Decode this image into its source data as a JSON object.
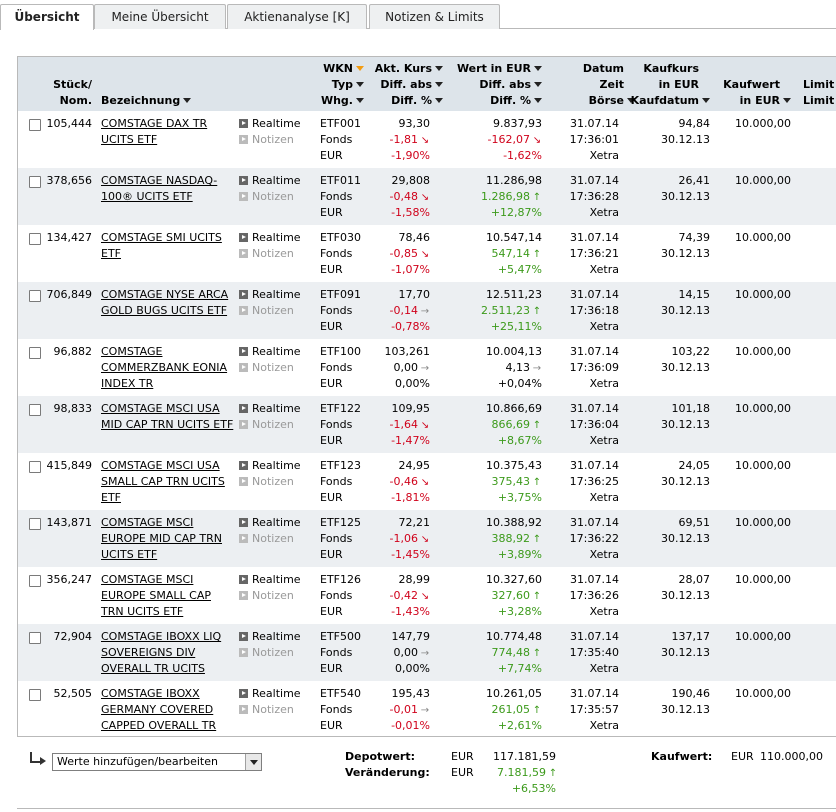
{
  "tabs": [
    {
      "label": "Übersicht"
    },
    {
      "label": "Meine Übersicht"
    },
    {
      "label": "Aktienanalyse [K]"
    },
    {
      "label": "Notizen & Limits"
    }
  ],
  "headers": {
    "stueck": [
      "Stück/",
      "Nom."
    ],
    "bezeichnung": "Bezeichnung",
    "wkn": [
      "WKN",
      "Typ",
      "Whg."
    ],
    "kurs": [
      "Akt. Kurs",
      "Diff. abs",
      "Diff. %"
    ],
    "wert": [
      "Wert in EUR",
      "Diff. abs",
      "Diff. %"
    ],
    "datum": [
      "Datum",
      "Zeit",
      "Börse"
    ],
    "kaufkurs": [
      "Kaufkurs",
      "in EUR",
      "Kaufdatum"
    ],
    "kaufwert": [
      "Kaufwert",
      "in EUR"
    ],
    "limit": [
      "Limit",
      "Limit"
    ]
  },
  "link_labels": {
    "realtime": "Realtime",
    "notizen": "Notizen"
  },
  "rows": [
    {
      "qty": "105,444",
      "name": "COMSTAGE DAX TR UCITS ETF",
      "wkn": "ETF001",
      "typ": "Fonds",
      "whg": "EUR",
      "kurs": "93,30",
      "kurs_diff": "-1,81",
      "kurs_pct": "-1,90%",
      "kurs_dir": "down",
      "wert": "9.837,93",
      "wert_diff": "-162,07",
      "wert_pct": "-1,62%",
      "wert_dir": "down",
      "datum": "31.07.14",
      "zeit": "17:36:01",
      "boerse": "Xetra",
      "kaufkurs": "94,84",
      "kaufdatum": "30.12.13",
      "kaufwert": "10.000,00"
    },
    {
      "qty": "378,656",
      "name": "COMSTAGE NASDAQ-100® UCITS ETF",
      "wkn": "ETF011",
      "typ": "Fonds",
      "whg": "EUR",
      "kurs": "29,808",
      "kurs_diff": "-0,48",
      "kurs_pct": "-1,58%",
      "kurs_dir": "down",
      "wert": "11.286,98",
      "wert_diff": "1.286,98",
      "wert_pct": "+12,87%",
      "wert_dir": "up",
      "datum": "31.07.14",
      "zeit": "17:36:28",
      "boerse": "Xetra",
      "kaufkurs": "26,41",
      "kaufdatum": "30.12.13",
      "kaufwert": "10.000,00"
    },
    {
      "qty": "134,427",
      "name": "COMSTAGE SMI UCITS ETF",
      "wkn": "ETF030",
      "typ": "Fonds",
      "whg": "EUR",
      "kurs": "78,46",
      "kurs_diff": "-0,85",
      "kurs_pct": "-1,07%",
      "kurs_dir": "down",
      "wert": "10.547,14",
      "wert_diff": "547,14",
      "wert_pct": "+5,47%",
      "wert_dir": "up",
      "datum": "31.07.14",
      "zeit": "17:36:21",
      "boerse": "Xetra",
      "kaufkurs": "74,39",
      "kaufdatum": "30.12.13",
      "kaufwert": "10.000,00"
    },
    {
      "qty": "706,849",
      "name": "COMSTAGE NYSE ARCA GOLD BUGS UCITS ETF",
      "wkn": "ETF091",
      "typ": "Fonds",
      "whg": "EUR",
      "kurs": "17,70",
      "kurs_diff": "-0,14",
      "kurs_pct": "-0,78%",
      "kurs_dir": "flat",
      "wert": "12.511,23",
      "wert_diff": "2.511,23",
      "wert_pct": "+25,11%",
      "wert_dir": "up",
      "datum": "31.07.14",
      "zeit": "17:36:18",
      "boerse": "Xetra",
      "kaufkurs": "14,15",
      "kaufdatum": "30.12.13",
      "kaufwert": "10.000,00"
    },
    {
      "qty": "96,882",
      "name": "COMSTAGE COMMERZBANK EONIA INDEX TR",
      "wkn": "ETF100",
      "typ": "Fonds",
      "whg": "EUR",
      "kurs": "103,261",
      "kurs_diff": "0,00",
      "kurs_pct": "0,00%",
      "kurs_dir": "flat",
      "wert": "10.004,13",
      "wert_diff": "4,13",
      "wert_pct": "+0,04%",
      "wert_dir": "flat",
      "datum": "31.07.14",
      "zeit": "17:36:09",
      "boerse": "Xetra",
      "kaufkurs": "103,22",
      "kaufdatum": "30.12.13",
      "kaufwert": "10.000,00"
    },
    {
      "qty": "98,833",
      "name": "COMSTAGE MSCI USA MID CAP TRN UCITS ETF",
      "wkn": "ETF122",
      "typ": "Fonds",
      "whg": "EUR",
      "kurs": "109,95",
      "kurs_diff": "-1,64",
      "kurs_pct": "-1,47%",
      "kurs_dir": "down",
      "wert": "10.866,69",
      "wert_diff": "866,69",
      "wert_pct": "+8,67%",
      "wert_dir": "up",
      "datum": "31.07.14",
      "zeit": "17:36:04",
      "boerse": "Xetra",
      "kaufkurs": "101,18",
      "kaufdatum": "30.12.13",
      "kaufwert": "10.000,00"
    },
    {
      "qty": "415,849",
      "name": "COMSTAGE MSCI USA SMALL CAP TRN UCITS ETF",
      "wkn": "ETF123",
      "typ": "Fonds",
      "whg": "EUR",
      "kurs": "24,95",
      "kurs_diff": "-0,46",
      "kurs_pct": "-1,81%",
      "kurs_dir": "down",
      "wert": "10.375,43",
      "wert_diff": "375,43",
      "wert_pct": "+3,75%",
      "wert_dir": "up",
      "datum": "31.07.14",
      "zeit": "17:36:25",
      "boerse": "Xetra",
      "kaufkurs": "24,05",
      "kaufdatum": "30.12.13",
      "kaufwert": "10.000,00"
    },
    {
      "qty": "143,871",
      "name": "COMSTAGE MSCI EUROPE MID CAP TRN UCITS ETF",
      "wkn": "ETF125",
      "typ": "Fonds",
      "whg": "EUR",
      "kurs": "72,21",
      "kurs_diff": "-1,06",
      "kurs_pct": "-1,45%",
      "kurs_dir": "down",
      "wert": "10.388,92",
      "wert_diff": "388,92",
      "wert_pct": "+3,89%",
      "wert_dir": "up",
      "datum": "31.07.14",
      "zeit": "17:36:22",
      "boerse": "Xetra",
      "kaufkurs": "69,51",
      "kaufdatum": "30.12.13",
      "kaufwert": "10.000,00"
    },
    {
      "qty": "356,247",
      "name": "COMSTAGE MSCI EUROPE SMALL CAP TRN UCITS ETF",
      "wkn": "ETF126",
      "typ": "Fonds",
      "whg": "EUR",
      "kurs": "28,99",
      "kurs_diff": "-0,42",
      "kurs_pct": "-1,43%",
      "kurs_dir": "down",
      "wert": "10.327,60",
      "wert_diff": "327,60",
      "wert_pct": "+3,28%",
      "wert_dir": "up",
      "datum": "31.07.14",
      "zeit": "17:36:26",
      "boerse": "Xetra",
      "kaufkurs": "28,07",
      "kaufdatum": "30.12.13",
      "kaufwert": "10.000,00"
    },
    {
      "qty": "72,904",
      "name": "COMSTAGE IBOXX LIQ SOVEREIGNS DIV OVERALL TR UCITS",
      "wkn": "ETF500",
      "typ": "Fonds",
      "whg": "EUR",
      "kurs": "147,79",
      "kurs_diff": "0,00",
      "kurs_pct": "0,00%",
      "kurs_dir": "flat",
      "wert": "10.774,48",
      "wert_diff": "774,48",
      "wert_pct": "+7,74%",
      "wert_dir": "up",
      "datum": "31.07.14",
      "zeit": "17:35:40",
      "boerse": "Xetra",
      "kaufkurs": "137,17",
      "kaufdatum": "30.12.13",
      "kaufwert": "10.000,00"
    },
    {
      "qty": "52,505",
      "name": "COMSTAGE IBOXX GERMANY COVERED CAPPED OVERALL TR",
      "wkn": "ETF540",
      "typ": "Fonds",
      "whg": "EUR",
      "kurs": "195,43",
      "kurs_diff": "-0,01",
      "kurs_pct": "-0,01%",
      "kurs_dir": "flat",
      "wert": "10.261,05",
      "wert_diff": "261,05",
      "wert_pct": "+2,61%",
      "wert_dir": "up",
      "datum": "31.07.14",
      "zeit": "17:35:57",
      "boerse": "Xetra",
      "kaufkurs": "190,46",
      "kaufdatum": "30.12.13",
      "kaufwert": "10.000,00"
    }
  ],
  "footer": {
    "select_value": "Werte hinzufügen/bearbeiten",
    "depotwert_label": "Depotwert:",
    "depotwert_currency": "EUR",
    "depotwert_value": "117.181,59",
    "veraenderung_label": "Veränderung:",
    "veraenderung_currency": "EUR",
    "veraenderung_value": "7.181,59",
    "veraenderung_pct": "+6,53%",
    "kaufwert_label": "Kaufwert:",
    "kaufwert_currency": "EUR",
    "kaufwert_value": "110.000,00"
  },
  "colors": {
    "header_bg": "#dde4ea",
    "row_alt": "#eceff2",
    "negative": "#d0021b",
    "positive": "#3c9a1b",
    "sort_active": "#f39c12"
  },
  "icons": {
    "sort": "sort-down-arrow-icon",
    "play": "play-icon",
    "trend_down": "arrow-down-right-icon",
    "trend_up": "arrow-up-icon",
    "trend_flat": "arrow-right-icon",
    "add": "return-arrow-icon"
  }
}
